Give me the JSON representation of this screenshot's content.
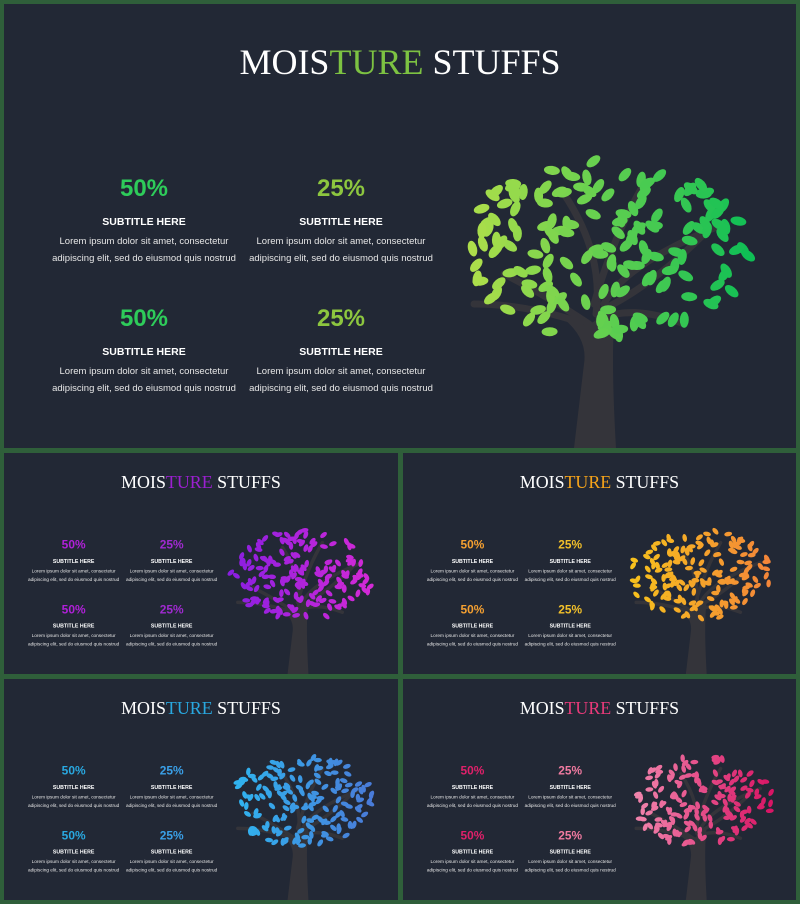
{
  "slides": [
    {
      "title": {
        "pre": "MOIS",
        "accent": "TURE",
        "post": "STUFFS"
      },
      "accent_color": "#7dc242",
      "value_colors": [
        "#2ecc5a",
        "#8dc63f"
      ],
      "leaf_colors": [
        "#b5e04a",
        "#0fbf55"
      ],
      "stats": [
        {
          "value": "50%",
          "subtitle": "SUBTITLE HERE",
          "lines": [
            "Lorem ipsum dolor sit amet, consectetur",
            "adipiscing elit, sed do eiusmod quis nostrud"
          ]
        },
        {
          "value": "25%",
          "subtitle": "SUBTITLE HERE",
          "lines": [
            "Lorem ipsum dolor sit amet, consectetur",
            "adipiscing elit, sed do eiusmod quis nostrud"
          ]
        },
        {
          "value": "50%",
          "subtitle": "SUBTITLE HERE",
          "lines": [
            "Lorem ipsum dolor sit amet, consectetur",
            "adipiscing elit, sed do eiusmod quis nostrud"
          ]
        },
        {
          "value": "25%",
          "subtitle": "SUBTITLE HERE",
          "lines": [
            "Lorem ipsum dolor sit amet, consectetur",
            "adipiscing elit, sed do eiusmod quis nostrud"
          ]
        }
      ]
    },
    {
      "title": {
        "pre": "MOIS",
        "accent": "TURE",
        "post": "STUFFS"
      },
      "accent_color": "#9b1fd0",
      "value_colors": [
        "#b020d8",
        "#a02ad0"
      ],
      "leaf_colors": [
        "#8a1ee0",
        "#d62ad6"
      ],
      "stats": [
        {
          "value": "50%",
          "subtitle": "SUBTITLE HERE",
          "lines": [
            "Lorem ipsum dolor sit amet, consectetur",
            "adipiscing elit, sed do eiusmod quis nostrud"
          ]
        },
        {
          "value": "25%",
          "subtitle": "SUBTITLE HERE",
          "lines": [
            "Lorem ipsum dolor sit amet, consectetur",
            "adipiscing elit, sed do eiusmod quis nostrud"
          ]
        },
        {
          "value": "50%",
          "subtitle": "SUBTITLE HERE",
          "lines": [
            "Lorem ipsum dolor sit amet, consectetur",
            "adipiscing elit, sed do eiusmod quis nostrud"
          ]
        },
        {
          "value": "25%",
          "subtitle": "SUBTITLE HERE",
          "lines": [
            "Lorem ipsum dolor sit amet, consectetur",
            "adipiscing elit, sed do eiusmod quis nostrud"
          ]
        }
      ]
    },
    {
      "title": {
        "pre": "MOIS",
        "accent": "TURE",
        "post": "STUFFS"
      },
      "accent_color": "#f5a31a",
      "value_colors": [
        "#f5a031",
        "#f2c02a"
      ],
      "leaf_colors": [
        "#f7c21c",
        "#f3843a"
      ],
      "stats": [
        {
          "value": "50%",
          "subtitle": "SUBTITLE HERE",
          "lines": [
            "Lorem ipsum dolor sit amet, consectetur",
            "adipiscing elit, sed do eiusmod quis nostrud"
          ]
        },
        {
          "value": "25%",
          "subtitle": "SUBTITLE HERE",
          "lines": [
            "Lorem ipsum dolor sit amet, consectetur",
            "adipiscing elit, sed do eiusmod quis nostrud"
          ]
        },
        {
          "value": "50%",
          "subtitle": "SUBTITLE HERE",
          "lines": [
            "Lorem ipsum dolor sit amet, consectetur",
            "adipiscing elit, sed do eiusmod quis nostrud"
          ]
        },
        {
          "value": "25%",
          "subtitle": "SUBTITLE HERE",
          "lines": [
            "Lorem ipsum dolor sit amet, consectetur",
            "adipiscing elit, sed do eiusmod quis nostrud"
          ]
        }
      ]
    },
    {
      "title": {
        "pre": "MOIS",
        "accent": "TURE",
        "post": "STUFFS"
      },
      "accent_color": "#29a8e0",
      "value_colors": [
        "#29a8e0",
        "#3aa0e8"
      ],
      "leaf_colors": [
        "#2fb6f0",
        "#4a7ad8"
      ],
      "stats": [
        {
          "value": "50%",
          "subtitle": "SUBTITLE HERE",
          "lines": [
            "Lorem ipsum dolor sit amet, consectetur",
            "adipiscing elit, sed do eiusmod quis nostrud"
          ]
        },
        {
          "value": "25%",
          "subtitle": "SUBTITLE HERE",
          "lines": [
            "Lorem ipsum dolor sit amet, consectetur",
            "adipiscing elit, sed do eiusmod quis nostrud"
          ]
        },
        {
          "value": "50%",
          "subtitle": "SUBTITLE HERE",
          "lines": [
            "Lorem ipsum dolor sit amet, consectetur",
            "adipiscing elit, sed do eiusmod quis nostrud"
          ]
        },
        {
          "value": "25%",
          "subtitle": "SUBTITLE HERE",
          "lines": [
            "Lorem ipsum dolor sit amet, consectetur",
            "adipiscing elit, sed do eiusmod quis nostrud"
          ]
        }
      ]
    },
    {
      "title": {
        "pre": "MOIS",
        "accent": "TURE",
        "post": "STUFFS"
      },
      "accent_color": "#e83a7a",
      "value_colors": [
        "#e0206a",
        "#f07aa0"
      ],
      "leaf_colors": [
        "#f28ab0",
        "#d81464"
      ],
      "stats": [
        {
          "value": "50%",
          "subtitle": "SUBTITLE HERE",
          "lines": [
            "Lorem ipsum dolor sit amet, consectetur",
            "adipiscing elit, sed do eiusmod quis nostrud"
          ]
        },
        {
          "value": "25%",
          "subtitle": "SUBTITLE HERE",
          "lines": [
            "Lorem ipsum dolor sit amet, consectetur",
            "adipiscing elit, sed do eiusmod quis nostrud"
          ]
        },
        {
          "value": "50%",
          "subtitle": "SUBTITLE HERE",
          "lines": [
            "Lorem ipsum dolor sit amet, consectetur",
            "adipiscing elit, sed do eiusmod quis nostrud"
          ]
        },
        {
          "value": "25%",
          "subtitle": "SUBTITLE HERE",
          "lines": [
            "Lorem ipsum dolor sit amet, consectetur",
            "adipiscing elit, sed do eiusmod quis nostrud"
          ]
        }
      ]
    }
  ]
}
